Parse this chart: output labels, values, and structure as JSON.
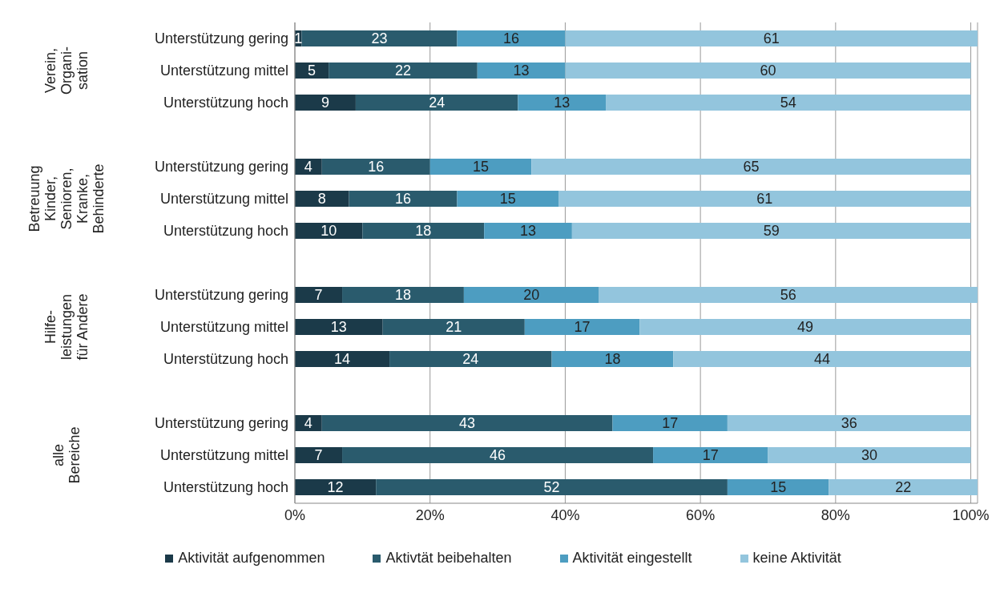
{
  "chart_data": {
    "type": "bar",
    "orientation": "horizontal",
    "stacked": true,
    "data_labels": true,
    "grid": "x",
    "legend": "bottom",
    "categories": [
      "Unterstützung gering",
      "Unterstützung mittel",
      "Unterstützung hoch",
      null,
      "Unterstützung gering",
      "Unterstützung mittel",
      "Unterstützung hoch",
      null,
      "Unterstützung gering",
      "Unterstützung mittel",
      "Unterstützung hoch",
      null,
      "Unterstützung gering",
      "Unterstützung mittel",
      "Unterstützung hoch"
    ],
    "annotations": [
      "Verein,\nOrgani-\nsation",
      "Betreuung\nKinder,\nSenioren,\nKranke,\nBehinderte",
      "Hilfe-\nleistungen\nfür Andere",
      "alle\nBereiche"
    ],
    "xlim": [
      0,
      101
    ],
    "xticks": [
      {
        "value": 0,
        "label": "0%"
      },
      {
        "value": 20,
        "label": "20%"
      },
      {
        "value": 40,
        "label": "40%"
      },
      {
        "value": 60,
        "label": "60%"
      },
      {
        "value": 80,
        "label": "80%"
      },
      {
        "value": 100,
        "label": "100%"
      }
    ],
    "series": [
      {
        "name": "Aktivität aufgenommen",
        "color": "#1b3a49",
        "values": [
          1,
          5,
          9,
          null,
          4,
          8,
          10,
          null,
          7,
          13,
          14,
          null,
          4,
          7,
          12
        ]
      },
      {
        "name": "Aktivtät beibehalten",
        "color": "#2a5b6d",
        "values": [
          23,
          22,
          24,
          null,
          16,
          16,
          18,
          null,
          18,
          21,
          24,
          null,
          43,
          46,
          52
        ]
      },
      {
        "name": "Aktivität eingestellt",
        "color": "#4d9dc1",
        "values": [
          16,
          13,
          13,
          null,
          15,
          15,
          13,
          null,
          20,
          17,
          18,
          null,
          17,
          17,
          15
        ]
      },
      {
        "name": "keine Aktivität",
        "color": "#93c5dd",
        "values": [
          61,
          60,
          54,
          null,
          65,
          61,
          59,
          null,
          56,
          49,
          44,
          null,
          36,
          30,
          22
        ]
      }
    ]
  }
}
